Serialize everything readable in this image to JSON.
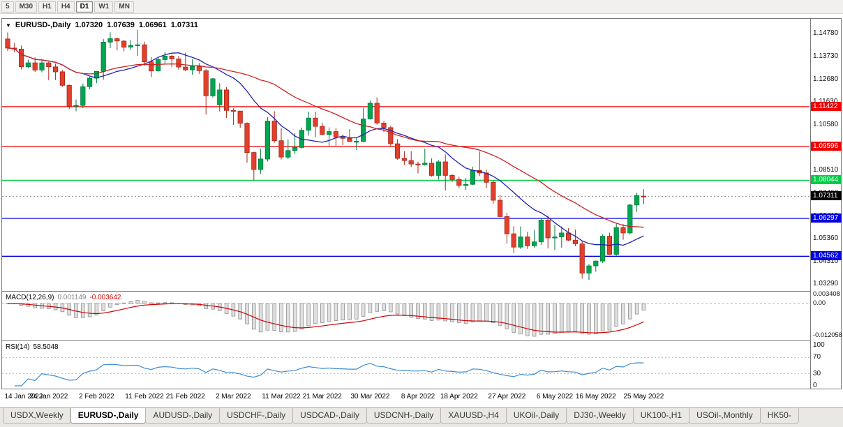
{
  "icons": {
    "collapse_arrow": "▼"
  },
  "toolbar": {
    "timeframes": [
      {
        "label": "5",
        "active": false
      },
      {
        "label": "M30",
        "active": false
      },
      {
        "label": "H1",
        "active": false
      },
      {
        "label": "H4",
        "active": false
      },
      {
        "label": "D1",
        "active": true
      },
      {
        "label": "W1",
        "active": false
      },
      {
        "label": "MN",
        "active": false
      }
    ]
  },
  "chart_header": {
    "symbol": "EURUSD-,Daily",
    "open": "1.07320",
    "high": "1.07639",
    "low": "1.06961",
    "close": "1.07311"
  },
  "macd_panel": {
    "label": "MACD(12,26,9)",
    "main_value": "0.001149",
    "signal_value": "-0.003642",
    "axis_ticks": [
      {
        "value": 0.003408,
        "label": "0.003408",
        "dashed": false
      },
      {
        "value": 0.0,
        "label": "0.00",
        "dashed": true
      },
      {
        "value": -0.012058,
        "label": "-0.012058",
        "dashed": false
      }
    ]
  },
  "rsi_panel": {
    "label": "RSI(14)",
    "value": "58.5048",
    "axis_ticks": [
      {
        "value": 100,
        "label": "100",
        "dashed": false
      },
      {
        "value": 70,
        "label": "70",
        "dashed": true
      },
      {
        "value": 30,
        "label": "30",
        "dashed": true
      },
      {
        "value": 0,
        "label": "0",
        "dashed": false
      }
    ]
  },
  "price_axis_ticks": [
    "1.14780",
    "1.13730",
    "1.12680",
    "1.11630",
    "1.10580",
    "1.09530",
    "1.08510",
    "1.07460",
    "1.06410",
    "1.05360",
    "1.04310",
    "1.03290"
  ],
  "date_labels": [
    "14 Jan 2022",
    "24 Jan 2022",
    "2 Feb 2022",
    "11 Feb 2022",
    "21 Feb 2022",
    "2 Mar 2022",
    "11 Mar 2022",
    "21 Mar 2022",
    "30 Mar 2022",
    "8 Apr 2022",
    "18 Apr 2022",
    "27 Apr 2022",
    "6 May 2022",
    "16 May 2022",
    "25 May 2022"
  ],
  "bottom_tabs": [
    {
      "label": "USDX,Weekly",
      "active": false
    },
    {
      "label": "EURUSD-,Daily",
      "active": true
    },
    {
      "label": "AUDUSD-,Daily",
      "active": false
    },
    {
      "label": "USDCHF-,Daily",
      "active": false
    },
    {
      "label": "USDCAD-,Daily",
      "active": false
    },
    {
      "label": "USDCNH-,Daily",
      "active": false
    },
    {
      "label": "XAUUSD-,H4",
      "active": false
    },
    {
      "label": "UKOil-,Daily",
      "active": false
    },
    {
      "label": "DJ30-,Weekly",
      "active": false
    },
    {
      "label": "UK100-,H1",
      "active": false
    },
    {
      "label": "USOil-,Monthly",
      "active": false
    },
    {
      "label": "HK50-",
      "active": false
    }
  ],
  "chart_data": {
    "type": "candlestick",
    "symbol": "EURUSD-",
    "timeframe": "Daily",
    "last_quote": {
      "open": 1.0732,
      "high": 1.07639,
      "low": 1.06961,
      "close": 1.07311
    },
    "price_range": {
      "top": 1.1545,
      "bottom": 1.0297
    },
    "colors": {
      "up": "#00a651",
      "up_border": "#007a3c",
      "down": "#e2402c",
      "down_border": "#a8271a",
      "macd_hist_fill": "#e0e0e0",
      "macd_hist_border": "#909090",
      "macd_signal": "#cc0000",
      "rsi_line": "#3c8bd0",
      "rsi_level": "#8db4d9",
      "ma_fast": "#2222aa",
      "ma_slow": "#cc2222"
    },
    "moving_averages": [
      {
        "name": "ma-fast-line",
        "period": 12,
        "color": "#2222aa"
      },
      {
        "name": "ma-slow-line",
        "period": 26,
        "color": "#cc2222"
      }
    ],
    "levels": [
      {
        "price": 1.11422,
        "label": "1.11422",
        "color": "#ee0000"
      },
      {
        "price": 1.09596,
        "label": "1.09596",
        "color": "#ee0000"
      },
      {
        "price": 1.08044,
        "label": "1.08044",
        "color": "#00cc44"
      },
      {
        "price": 1.06297,
        "label": "1.06297",
        "color": "#0000dd"
      },
      {
        "price": 1.04562,
        "label": "1.04562",
        "color": "#0000dd"
      }
    ],
    "current_price": {
      "value": 1.07311,
      "label": "1.07311",
      "color": "#000000"
    },
    "indicators": {
      "macd": {
        "fast": 12,
        "slow": 26,
        "signal": 9
      },
      "rsi": {
        "period": 14
      }
    },
    "macd_scale": {
      "top": 0.0045,
      "bottom": -0.014
    },
    "date_tick_indices": [
      0,
      6,
      13,
      20,
      26,
      33,
      40,
      46,
      53,
      60,
      66,
      73,
      80,
      86,
      93
    ],
    "candles": [
      [
        1.1453,
        1.1483,
        1.1398,
        1.1411
      ],
      [
        1.1411,
        1.1435,
        1.1391,
        1.1406
      ],
      [
        1.1406,
        1.1422,
        1.1313,
        1.1325
      ],
      [
        1.1325,
        1.1358,
        1.1318,
        1.1343
      ],
      [
        1.1343,
        1.1369,
        1.1301,
        1.131
      ],
      [
        1.131,
        1.136,
        1.13,
        1.1343
      ],
      [
        1.1343,
        1.1349,
        1.1263,
        1.1325
      ],
      [
        1.1325,
        1.134,
        1.1264,
        1.1302
      ],
      [
        1.1302,
        1.131,
        1.1234,
        1.124
      ],
      [
        1.124,
        1.1244,
        1.1131,
        1.1144
      ],
      [
        1.1144,
        1.1175,
        1.1121,
        1.1148
      ],
      [
        1.1148,
        1.1248,
        1.1135,
        1.1234
      ],
      [
        1.1234,
        1.1279,
        1.1222,
        1.1273
      ],
      [
        1.1273,
        1.1305,
        1.125,
        1.1304
      ],
      [
        1.1304,
        1.1452,
        1.1266,
        1.1438
      ],
      [
        1.1438,
        1.1483,
        1.1411,
        1.1454
      ],
      [
        1.1454,
        1.1459,
        1.14,
        1.1443
      ],
      [
        1.1443,
        1.1449,
        1.1396,
        1.1415
      ],
      [
        1.1415,
        1.1448,
        1.1403,
        1.1423
      ],
      [
        1.1423,
        1.1495,
        1.1375,
        1.1426
      ],
      [
        1.1426,
        1.144,
        1.1329,
        1.1348
      ],
      [
        1.1348,
        1.1369,
        1.1278,
        1.1306
      ],
      [
        1.1306,
        1.1368,
        1.13,
        1.1358
      ],
      [
        1.1358,
        1.1395,
        1.134,
        1.1374
      ],
      [
        1.1374,
        1.138,
        1.1323,
        1.1361
      ],
      [
        1.1361,
        1.1375,
        1.1312,
        1.1324
      ],
      [
        1.1324,
        1.139,
        1.1305,
        1.1311
      ],
      [
        1.1311,
        1.1359,
        1.1288,
        1.1326
      ],
      [
        1.1326,
        1.1342,
        1.1293,
        1.1307
      ],
      [
        1.1307,
        1.1314,
        1.1106,
        1.1192
      ],
      [
        1.1192,
        1.1273,
        1.1184,
        1.127
      ],
      [
        1.115,
        1.125,
        1.112,
        1.1219
      ],
      [
        1.1219,
        1.1233,
        1.109,
        1.1125
      ],
      [
        1.1125,
        1.1135,
        1.1058,
        1.1122
      ],
      [
        1.1122,
        1.1123,
        1.1045,
        1.1066
      ],
      [
        1.1066,
        1.107,
        1.0885,
        1.0932
      ],
      [
        1.0932,
        1.0935,
        1.0806,
        1.0854
      ],
      [
        1.0854,
        1.095,
        1.0834,
        1.0902
      ],
      [
        1.0902,
        1.1095,
        1.0891,
        1.1076
      ],
      [
        1.1076,
        1.1121,
        1.0977,
        1.0986
      ],
      [
        1.0986,
        1.1043,
        1.09,
        1.0911
      ],
      [
        1.0911,
        1.0992,
        1.0901,
        1.0941
      ],
      [
        1.0941,
        1.102,
        1.0925,
        1.0955
      ],
      [
        1.0955,
        1.1046,
        1.095,
        1.1034
      ],
      [
        1.1034,
        1.1119,
        1.1009,
        1.109
      ],
      [
        1.109,
        1.1119,
        1.1003,
        1.1052
      ],
      [
        1.1052,
        1.1069,
        1.1011,
        1.1015
      ],
      [
        1.1015,
        1.1047,
        1.0962,
        1.1028
      ],
      [
        1.1028,
        1.1044,
        1.0963,
        1.1003
      ],
      [
        1.1003,
        1.1014,
        1.0966,
        1.0997
      ],
      [
        1.0997,
        1.1039,
        1.0981,
        1.0983
      ],
      [
        1.0983,
        1.0998,
        1.0944,
        1.0983
      ],
      [
        1.0983,
        1.1137,
        1.098,
        1.1086
      ],
      [
        1.1086,
        1.1171,
        1.1083,
        1.1158
      ],
      [
        1.1158,
        1.1185,
        1.106,
        1.1067
      ],
      [
        1.1067,
        1.1076,
        1.1027,
        1.1046
      ],
      [
        1.1046,
        1.1055,
        1.096,
        1.0972
      ],
      [
        1.0972,
        1.0993,
        1.0899,
        1.0905
      ],
      [
        1.0905,
        1.0938,
        1.0874,
        1.0895
      ],
      [
        1.0895,
        1.0938,
        1.0865,
        1.0879
      ],
      [
        1.0879,
        1.089,
        1.0836,
        1.0876
      ],
      [
        1.0876,
        1.095,
        1.0872,
        1.0883
      ],
      [
        1.0883,
        1.0905,
        1.0821,
        1.0827
      ],
      [
        1.0827,
        1.0896,
        1.0808,
        1.0889
      ],
      [
        1.0889,
        1.0923,
        1.0757,
        1.0827
      ],
      [
        1.0827,
        1.0832,
        1.0796,
        1.0808
      ],
      [
        1.0808,
        1.0821,
        1.0769,
        1.0781
      ],
      [
        1.0781,
        1.0815,
        1.0761,
        1.0786
      ],
      [
        1.0786,
        1.0867,
        1.0782,
        1.085
      ],
      [
        1.085,
        1.0937,
        1.0824,
        1.0838
      ],
      [
        1.0838,
        1.0852,
        1.077,
        1.0795
      ],
      [
        1.0795,
        1.0805,
        1.0697,
        1.0713
      ],
      [
        1.0713,
        1.0738,
        1.0635,
        1.0638
      ],
      [
        1.0638,
        1.0655,
        1.0514,
        1.0559
      ],
      [
        1.0559,
        1.0594,
        1.0471,
        1.0498
      ],
      [
        1.0498,
        1.0593,
        1.049,
        1.0545
      ],
      [
        1.0545,
        1.0568,
        1.049,
        1.0504
      ],
      [
        1.0504,
        1.0578,
        1.0495,
        1.0522
      ],
      [
        1.0522,
        1.0632,
        1.0508,
        1.0622
      ],
      [
        1.0622,
        1.0642,
        1.0492,
        1.054
      ],
      [
        1.054,
        1.0599,
        1.0483,
        1.0545
      ],
      [
        1.0545,
        1.0593,
        1.0495,
        1.0563
      ],
      [
        1.0563,
        1.0585,
        1.0526,
        1.053
      ],
      [
        1.053,
        1.0579,
        1.0502,
        1.0513
      ],
      [
        1.0513,
        1.0525,
        1.0354,
        1.0379
      ],
      [
        1.0379,
        1.042,
        1.0348,
        1.0412
      ],
      [
        1.0412,
        1.0437,
        1.0385,
        1.0434
      ],
      [
        1.0434,
        1.0557,
        1.0426,
        1.0548
      ],
      [
        1.0548,
        1.0564,
        1.0462,
        1.0465
      ],
      [
        1.0465,
        1.0607,
        1.0459,
        1.0588
      ],
      [
        1.0588,
        1.0604,
        1.0532,
        1.0563
      ],
      [
        1.0563,
        1.0697,
        1.0556,
        1.0691
      ],
      [
        1.0691,
        1.0748,
        1.066,
        1.0734
      ],
      [
        1.0732,
        1.07639,
        1.06961,
        1.07311
      ]
    ]
  }
}
